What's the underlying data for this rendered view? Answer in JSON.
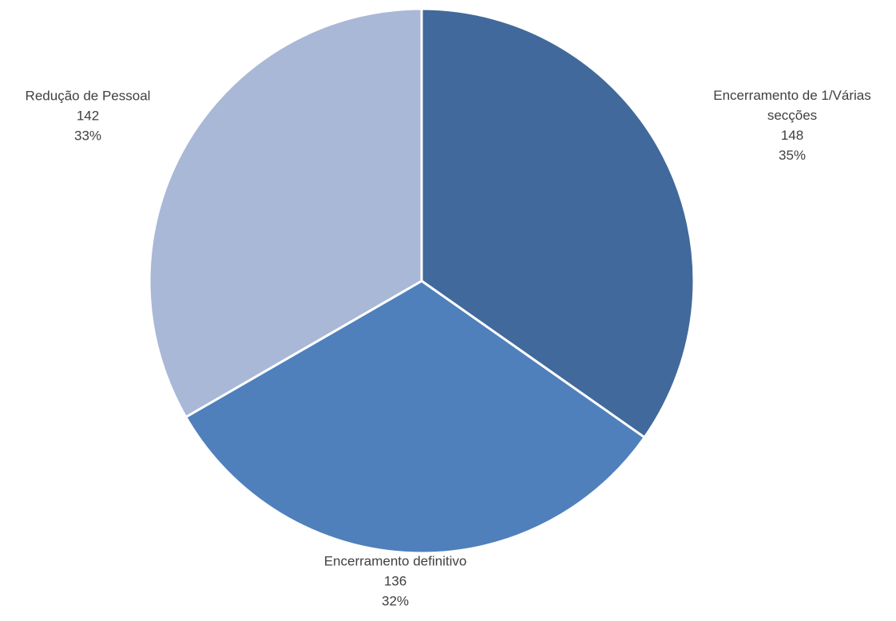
{
  "chart_data": {
    "type": "pie",
    "title": "",
    "slices": [
      {
        "label_lines": [
          "Encerramento de 1/Várias",
          "secções"
        ],
        "value": 148,
        "percent_label": "35%",
        "color": "#41699B"
      },
      {
        "label_lines": [
          "Encerramento definitivo"
        ],
        "value": 136,
        "percent_label": "32%",
        "color": "#4F80BC"
      },
      {
        "label_lines": [
          "Redução de Pessoal"
        ],
        "value": 142,
        "percent_label": "33%",
        "color": "#A9B8D6"
      }
    ],
    "start_angle_deg": 0,
    "direction": "clockwise",
    "slice_border_color": "#FFFFFF",
    "label_color": "#404040",
    "legend": "none"
  }
}
